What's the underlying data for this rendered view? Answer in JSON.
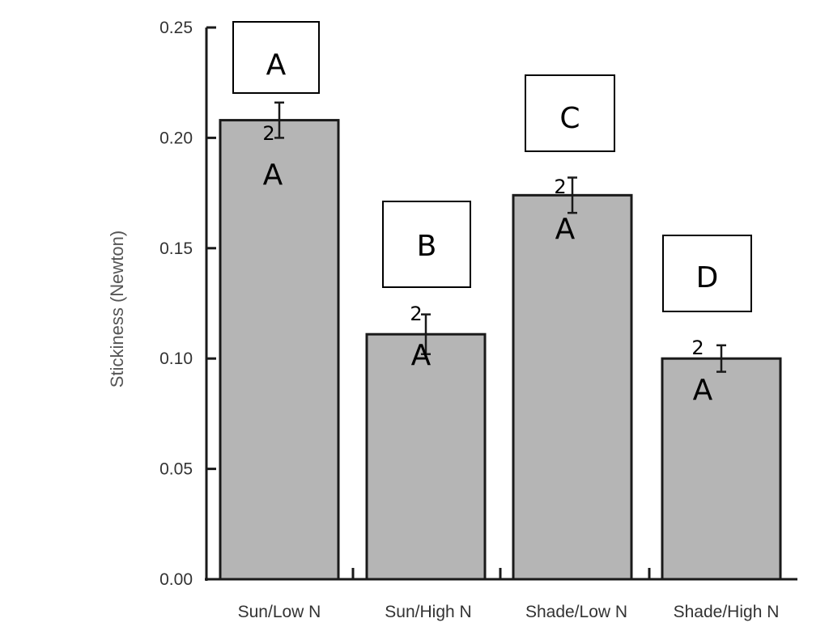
{
  "chart_data": {
    "type": "bar",
    "title": "",
    "xlabel": "",
    "ylabel": "Stickiness (Newton)",
    "ylim": [
      0,
      0.25
    ],
    "yticks": [
      "0.00",
      "0.05",
      "0.10",
      "0.15",
      "0.20",
      "0.25"
    ],
    "grid": false,
    "categories": [
      "Sun/Low N",
      "Sun/High N",
      "Shade/Low N",
      "Shade/High N"
    ],
    "values": [
      0.208,
      0.111,
      0.174,
      0.1
    ],
    "error_bars": [
      0.008,
      0.009,
      0.008,
      0.006
    ],
    "bar_color": "#b5b5b5",
    "annotations": {
      "box_labels": [
        "A",
        "B",
        "C",
        "D"
      ],
      "bar_letters": [
        "A",
        "A",
        "A",
        "A"
      ],
      "superscripts": [
        "2",
        "2",
        "2",
        "2"
      ]
    }
  }
}
